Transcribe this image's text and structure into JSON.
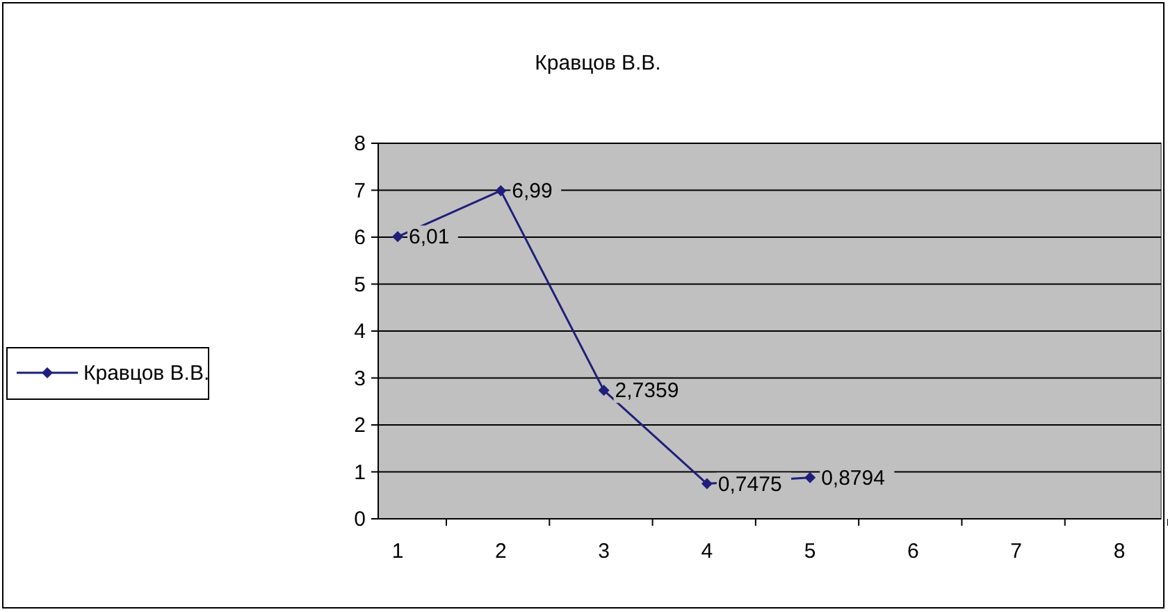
{
  "chart_data": {
    "type": "line",
    "title": "Кравцов В.В.",
    "categories": [
      "1",
      "2",
      "3",
      "4",
      "5",
      "6",
      "7",
      "8"
    ],
    "series": [
      {
        "name": "Кравцов В.В.",
        "color": "#1f1f7a",
        "values": [
          6.01,
          6.99,
          2.7359,
          0.7475,
          0.8794,
          null,
          null,
          null
        ],
        "value_labels": [
          "6,01",
          "6,99",
          "2,7359",
          "0,7475",
          "0,8794",
          null,
          null,
          null
        ]
      }
    ],
    "ylim": [
      0,
      8
    ],
    "yticks": [
      0,
      1,
      2,
      3,
      4,
      5,
      6,
      7,
      8
    ],
    "grid": "y",
    "legend": "left",
    "marker": "diamond",
    "line_style": "solid"
  }
}
